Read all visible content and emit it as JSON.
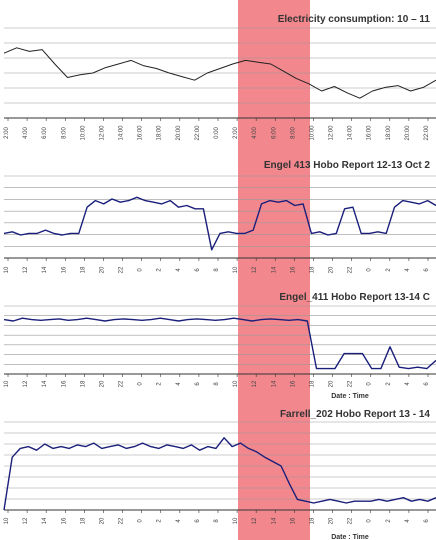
{
  "highlight_color": "#f0737a",
  "line_colors": {
    "top": "#222222",
    "hobo": "#1a1f7a"
  },
  "chart_data": [
    {
      "type": "line",
      "title": "Electricity consumption: 10 – 11",
      "xlabel": "",
      "ylabel": "",
      "grid": true,
      "ticks": [
        "2:00",
        "4:00",
        "6:00",
        "8:00",
        "10:00",
        "12:00",
        "14:00",
        "16:00",
        "18:00",
        "20:00",
        "22:00",
        "0:00",
        "2:00",
        "4:00",
        "6:00",
        "8:00",
        "10:00",
        "12:00",
        "14:00",
        "16:00",
        "18:00",
        "20:00",
        "22:00"
      ],
      "series": [
        {
          "values": [
            0.72,
            0.78,
            0.74,
            0.76,
            0.6,
            0.45,
            0.48,
            0.5,
            0.56,
            0.6,
            0.64,
            0.58,
            0.55,
            0.5,
            0.46,
            0.42,
            0.5,
            0.55,
            0.6,
            0.64,
            0.62,
            0.6,
            0.52,
            0.44,
            0.38,
            0.3,
            0.35,
            0.28,
            0.22,
            0.3,
            0.34,
            0.36,
            0.3,
            0.34,
            0.42
          ]
        }
      ],
      "ylim": [
        0,
        1
      ]
    },
    {
      "type": "line",
      "title": "Engel 413 Hobo Report 12-13 Oct 2",
      "xlabel": "",
      "ylabel": "",
      "grid": true,
      "ticks": [
        "10",
        "12",
        "14",
        "16",
        "18",
        "20",
        "22",
        "0",
        "2",
        "4",
        "6",
        "8",
        "10",
        "12",
        "14",
        "16",
        "18",
        "20",
        "22",
        "0",
        "2",
        "4",
        "6"
      ],
      "series": [
        {
          "values": [
            0.3,
            0.32,
            0.28,
            0.3,
            0.3,
            0.34,
            0.3,
            0.28,
            0.3,
            0.3,
            0.62,
            0.7,
            0.66,
            0.72,
            0.68,
            0.7,
            0.74,
            0.7,
            0.68,
            0.66,
            0.7,
            0.62,
            0.64,
            0.6,
            0.6,
            0.1,
            0.3,
            0.32,
            0.3,
            0.3,
            0.34,
            0.66,
            0.7,
            0.68,
            0.7,
            0.64,
            0.66,
            0.3,
            0.32,
            0.28,
            0.3,
            0.6,
            0.62,
            0.3,
            0.3,
            0.32,
            0.3,
            0.62,
            0.7,
            0.68,
            0.66,
            0.7,
            0.64
          ]
        }
      ],
      "ylim": [
        0,
        1
      ]
    },
    {
      "type": "line",
      "title": "Engel_411 Hobo Report 13-14 C",
      "xlabel": "Date : Time",
      "ylabel": "",
      "grid": true,
      "ticks": [
        "10",
        "12",
        "14",
        "16",
        "18",
        "20",
        "22",
        "0",
        "2",
        "4",
        "6",
        "8",
        "10",
        "12",
        "14",
        "16",
        "18",
        "20",
        "22",
        "0",
        "2",
        "4",
        "6"
      ],
      "series": [
        {
          "values": [
            0.8,
            0.78,
            0.82,
            0.8,
            0.79,
            0.8,
            0.81,
            0.79,
            0.8,
            0.82,
            0.8,
            0.78,
            0.8,
            0.81,
            0.8,
            0.79,
            0.8,
            0.82,
            0.8,
            0.78,
            0.8,
            0.81,
            0.8,
            0.79,
            0.8,
            0.82,
            0.8,
            0.78,
            0.8,
            0.81,
            0.8,
            0.79,
            0.8,
            0.78,
            0.08,
            0.08,
            0.08,
            0.3,
            0.3,
            0.3,
            0.08,
            0.08,
            0.4,
            0.1,
            0.08,
            0.1,
            0.08,
            0.2
          ]
        }
      ],
      "ylim": [
        0,
        1
      ]
    },
    {
      "type": "line",
      "title": "Farrell_202 Hobo Report 13 - 14",
      "xlabel": "Date : Time",
      "ylabel": "",
      "grid": true,
      "ticks": [
        "10",
        "12",
        "14",
        "16",
        "18",
        "20",
        "22",
        "0",
        "2",
        "4",
        "6",
        "8",
        "10",
        "12",
        "14",
        "16",
        "18",
        "20",
        "22",
        "0",
        "2",
        "4",
        "6"
      ],
      "series": [
        {
          "values": [
            0.0,
            0.6,
            0.7,
            0.72,
            0.68,
            0.75,
            0.7,
            0.72,
            0.7,
            0.74,
            0.72,
            0.76,
            0.7,
            0.72,
            0.74,
            0.7,
            0.72,
            0.76,
            0.72,
            0.7,
            0.74,
            0.72,
            0.7,
            0.74,
            0.68,
            0.72,
            0.7,
            0.82,
            0.72,
            0.76,
            0.7,
            0.66,
            0.6,
            0.55,
            0.5,
            0.3,
            0.12,
            0.1,
            0.08,
            0.1,
            0.12,
            0.1,
            0.08,
            0.1,
            0.1,
            0.1,
            0.12,
            0.1,
            0.12,
            0.14,
            0.1,
            0.12,
            0.1,
            0.14
          ]
        }
      ],
      "ylim": [
        0,
        1
      ]
    }
  ]
}
